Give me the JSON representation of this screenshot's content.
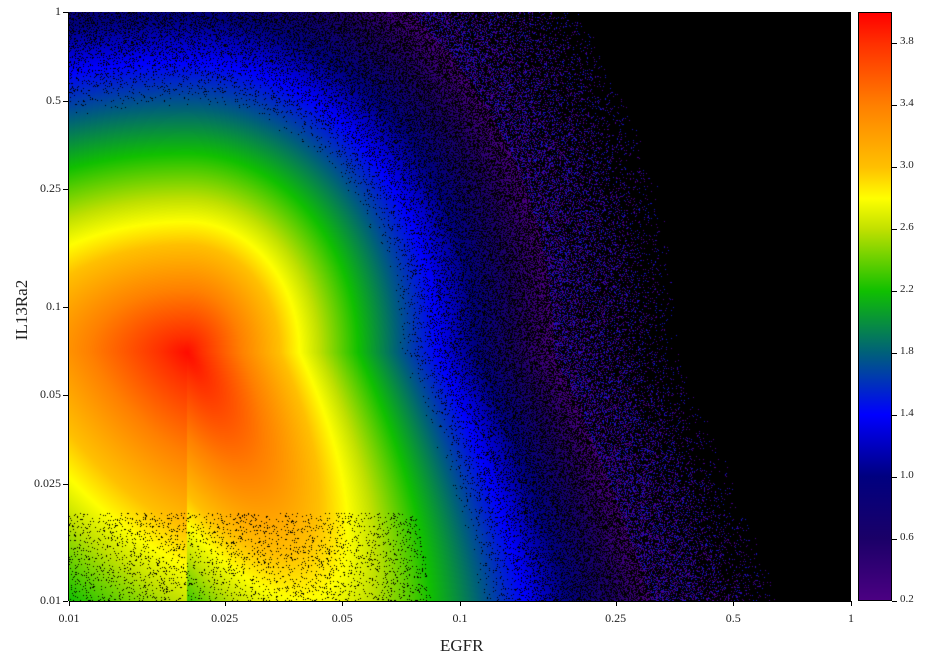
{
  "chart_data": {
    "type": "heatmap",
    "title": "",
    "xlabel": "EGFR",
    "ylabel": "IL13Ra2",
    "xscale": "log",
    "yscale": "log",
    "xlim": [
      0.01,
      1
    ],
    "ylim": [
      0.01,
      1
    ],
    "xticks": [
      "0.01",
      "0.025",
      "0.05",
      "0.1",
      "0.25",
      "0.5",
      "1"
    ],
    "yticks": [
      "0.01",
      "0.025",
      "0.05",
      "0.1",
      "0.25",
      "0.5",
      "1"
    ],
    "background": "#000000",
    "density_peak": {
      "EGFR": 0.02,
      "IL13Ra2": 0.07,
      "value": 3.95
    },
    "colorbar": {
      "range": [
        0.2,
        4.0
      ],
      "ticks": [
        "0.2",
        "0.6",
        "1.0",
        "1.4",
        "1.8",
        "2.2",
        "2.6",
        "3.0",
        "3.4",
        "3.8"
      ],
      "colormap": [
        [
          0.2,
          "#4b0082"
        ],
        [
          0.6,
          "#1a0068"
        ],
        [
          1.0,
          "#000080"
        ],
        [
          1.4,
          "#0000ff"
        ],
        [
          1.8,
          "#00607a"
        ],
        [
          2.2,
          "#10c000"
        ],
        [
          2.6,
          "#c0e000"
        ],
        [
          2.8,
          "#ffff00"
        ],
        [
          3.0,
          "#ffc000"
        ],
        [
          3.4,
          "#ff8000"
        ],
        [
          3.8,
          "#ff3000"
        ],
        [
          4.0,
          "#ff0000"
        ]
      ]
    }
  }
}
